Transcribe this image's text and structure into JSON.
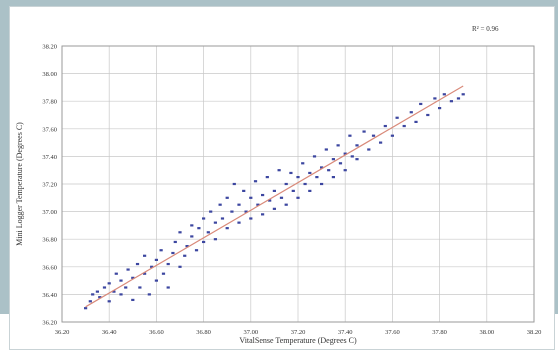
{
  "chart_data": {
    "type": "scatter",
    "title": "",
    "xlabel": "VitalSense Temperature (Degrees C)",
    "ylabel": "Mini Logger Temperature (Degrees C)",
    "annotation": "R² = 0.96",
    "xlim": [
      36.2,
      38.2
    ],
    "ylim": [
      36.2,
      38.2
    ],
    "x_ticks": [
      "36.20",
      "36.40",
      "36.60",
      "36.80",
      "37.00",
      "37.20",
      "37.40",
      "37.60",
      "37.80",
      "38.00",
      "38.20"
    ],
    "y_ticks": [
      "36.20",
      "36.40",
      "36.60",
      "36.80",
      "37.00",
      "37.20",
      "37.40",
      "37.60",
      "37.80",
      "38.00",
      "38.20"
    ],
    "grid": true,
    "colors": {
      "points": "#3c46a0",
      "trendline": "#d98a7a",
      "grid": "#c8c8c8"
    },
    "trendline": {
      "x": [
        36.3,
        37.9
      ],
      "y": [
        36.31,
        37.91
      ]
    },
    "series": [
      {
        "values": [
          [
            36.3,
            36.3
          ],
          [
            36.32,
            36.35
          ],
          [
            36.33,
            36.4
          ],
          [
            36.35,
            36.42
          ],
          [
            36.36,
            36.38
          ],
          [
            36.38,
            36.45
          ],
          [
            36.4,
            36.35
          ],
          [
            36.4,
            36.48
          ],
          [
            36.42,
            36.42
          ],
          [
            36.43,
            36.55
          ],
          [
            36.45,
            36.4
          ],
          [
            36.45,
            36.5
          ],
          [
            36.47,
            36.45
          ],
          [
            36.48,
            36.58
          ],
          [
            36.5,
            36.36
          ],
          [
            36.5,
            36.52
          ],
          [
            36.52,
            36.62
          ],
          [
            36.53,
            36.45
          ],
          [
            36.55,
            36.55
          ],
          [
            36.55,
            36.68
          ],
          [
            36.57,
            36.4
          ],
          [
            36.58,
            36.6
          ],
          [
            36.6,
            36.5
          ],
          [
            36.6,
            36.65
          ],
          [
            36.62,
            36.72
          ],
          [
            36.63,
            36.55
          ],
          [
            36.65,
            36.62
          ],
          [
            36.65,
            36.45
          ],
          [
            36.67,
            36.7
          ],
          [
            36.68,
            36.78
          ],
          [
            36.7,
            36.6
          ],
          [
            36.7,
            36.85
          ],
          [
            36.72,
            36.68
          ],
          [
            36.73,
            36.75
          ],
          [
            36.75,
            36.82
          ],
          [
            36.75,
            36.9
          ],
          [
            36.77,
            36.72
          ],
          [
            36.78,
            36.88
          ],
          [
            36.8,
            36.78
          ],
          [
            36.8,
            36.95
          ],
          [
            36.82,
            36.85
          ],
          [
            36.83,
            37.0
          ],
          [
            36.85,
            36.92
          ],
          [
            36.85,
            36.8
          ],
          [
            36.87,
            37.05
          ],
          [
            36.88,
            36.95
          ],
          [
            36.9,
            37.1
          ],
          [
            36.9,
            36.88
          ],
          [
            36.92,
            37.0
          ],
          [
            36.93,
            37.2
          ],
          [
            36.95,
            37.05
          ],
          [
            36.95,
            36.92
          ],
          [
            36.97,
            37.15
          ],
          [
            36.98,
            37.0
          ],
          [
            37.0,
            37.1
          ],
          [
            37.0,
            36.95
          ],
          [
            37.02,
            37.22
          ],
          [
            37.03,
            37.05
          ],
          [
            37.05,
            37.12
          ],
          [
            37.05,
            36.98
          ],
          [
            37.07,
            37.25
          ],
          [
            37.08,
            37.08
          ],
          [
            37.1,
            37.15
          ],
          [
            37.1,
            37.02
          ],
          [
            37.12,
            37.3
          ],
          [
            37.13,
            37.1
          ],
          [
            37.15,
            37.2
          ],
          [
            37.15,
            37.05
          ],
          [
            37.17,
            37.28
          ],
          [
            37.18,
            37.15
          ],
          [
            37.2,
            37.25
          ],
          [
            37.2,
            37.1
          ],
          [
            37.22,
            37.35
          ],
          [
            37.23,
            37.2
          ],
          [
            37.25,
            37.28
          ],
          [
            37.25,
            37.15
          ],
          [
            37.27,
            37.4
          ],
          [
            37.28,
            37.25
          ],
          [
            37.3,
            37.32
          ],
          [
            37.3,
            37.2
          ],
          [
            37.32,
            37.45
          ],
          [
            37.33,
            37.3
          ],
          [
            37.35,
            37.38
          ],
          [
            37.35,
            37.25
          ],
          [
            37.37,
            37.48
          ],
          [
            37.38,
            37.35
          ],
          [
            37.4,
            37.42
          ],
          [
            37.4,
            37.3
          ],
          [
            37.42,
            37.55
          ],
          [
            37.43,
            37.4
          ],
          [
            37.45,
            37.48
          ],
          [
            37.45,
            37.38
          ],
          [
            37.48,
            37.58
          ],
          [
            37.5,
            37.45
          ],
          [
            37.52,
            37.55
          ],
          [
            37.55,
            37.5
          ],
          [
            37.57,
            37.62
          ],
          [
            37.6,
            37.55
          ],
          [
            37.62,
            37.68
          ],
          [
            37.65,
            37.62
          ],
          [
            37.68,
            37.72
          ],
          [
            37.7,
            37.65
          ],
          [
            37.72,
            37.78
          ],
          [
            37.75,
            37.7
          ],
          [
            37.78,
            37.82
          ],
          [
            37.8,
            37.75
          ],
          [
            37.82,
            37.85
          ],
          [
            37.85,
            37.8
          ],
          [
            37.88,
            37.82
          ],
          [
            37.9,
            37.85
          ]
        ]
      }
    ]
  }
}
